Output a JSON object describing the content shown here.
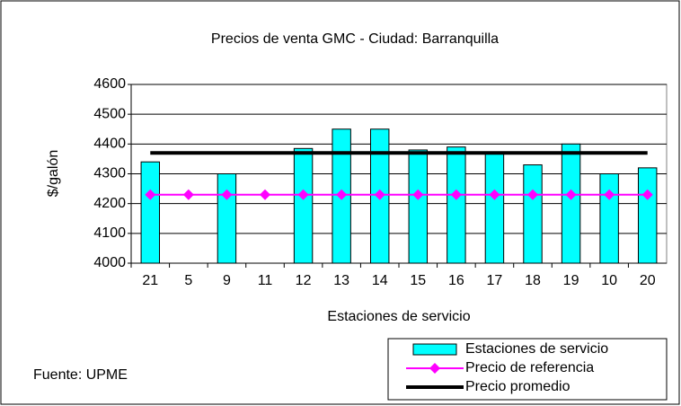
{
  "chart_data": {
    "type": "bar",
    "title": "Precios de venta GMC - Ciudad: Barranquilla",
    "x_label": "Estaciones de servicio",
    "y_label": "$/galón",
    "categories": [
      "21",
      "5",
      "9",
      "11",
      "12",
      "13",
      "14",
      "15",
      "16",
      "17",
      "18",
      "19",
      "10",
      "20"
    ],
    "series": [
      {
        "name": "Estaciones de servicio",
        "type": "bar",
        "color": "#00ffff",
        "values": [
          4340,
          null,
          4300,
          null,
          4385,
          4450,
          4450,
          4380,
          4390,
          4370,
          4330,
          4400,
          4300,
          4320
        ]
      },
      {
        "name": "Precio de referencia",
        "type": "line",
        "marker": "diamond",
        "color": "#ff00ff",
        "values": [
          4230,
          4230,
          4230,
          4230,
          4230,
          4230,
          4230,
          4230,
          4230,
          4230,
          4230,
          4230,
          4230,
          4230
        ]
      },
      {
        "name": "Precio promedio",
        "type": "line",
        "color": "#000000",
        "values": [
          4370,
          4370,
          4370,
          4370,
          4370,
          4370,
          4370,
          4370,
          4370,
          4370,
          4370,
          4370,
          4370,
          4370
        ]
      }
    ],
    "ylim": [
      4000,
      4600
    ],
    "yticks": [
      4000,
      4100,
      4200,
      4300,
      4400,
      4500,
      4600
    ],
    "grid": true,
    "legend": "lower right",
    "source": "Fuente: UPME"
  }
}
